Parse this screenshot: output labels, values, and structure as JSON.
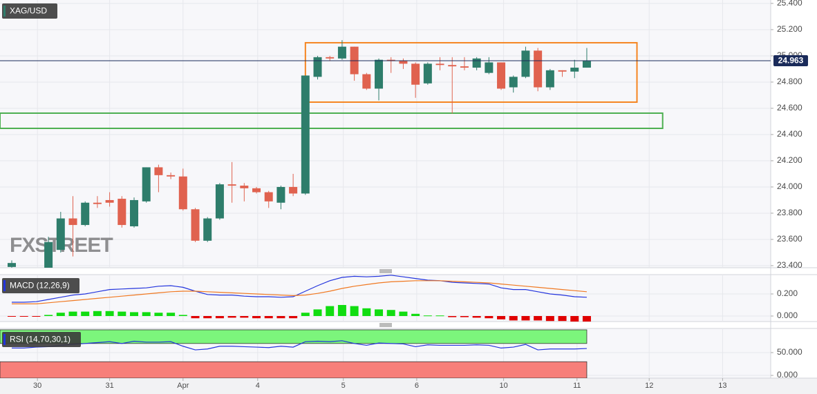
{
  "chart_data": [
    {
      "type": "candlestick",
      "title": "XAG/USD",
      "watermark": "FXSTREET",
      "x": [
        0,
        3,
        4,
        5,
        6,
        7,
        8,
        9,
        10,
        11,
        12,
        13,
        14,
        15,
        16,
        17,
        18,
        19,
        20,
        21,
        22,
        23,
        24,
        25,
        26,
        27,
        28,
        29,
        30,
        31,
        32,
        33,
        34,
        35,
        36,
        37,
        38,
        39,
        40,
        41,
        42,
        43,
        44,
        45,
        46,
        47
      ],
      "open": [
        23.39,
        23.35,
        23.52,
        23.76,
        23.71,
        23.88,
        23.9,
        23.91,
        23.7,
        23.89,
        24.15,
        24.09,
        24.08,
        23.83,
        23.59,
        23.76,
        24.02,
        24.01,
        23.99,
        23.96,
        23.88,
        24.0,
        23.95,
        24.84,
        24.99,
        24.98,
        25.07,
        24.86,
        24.75,
        24.97,
        24.96,
        24.94,
        24.79,
        24.94,
        24.93,
        24.92,
        24.91,
        24.87,
        24.95,
        24.76,
        24.84,
        25.04,
        24.76,
        24.89,
        24.88,
        24.91
      ],
      "high": [
        23.44,
        23.62,
        23.81,
        23.93,
        23.89,
        23.93,
        23.96,
        23.93,
        23.92,
        24.15,
        24.17,
        24.11,
        24.14,
        23.84,
        23.77,
        24.03,
        24.19,
        24.03,
        24.0,
        23.97,
        24.01,
        24.1,
        24.85,
        25.0,
        25.0,
        25.12,
        25.07,
        24.87,
        24.98,
        24.99,
        24.98,
        24.95,
        24.95,
        24.99,
        24.99,
        24.99,
        24.99,
        24.99,
        24.95,
        24.85,
        25.07,
        25.06,
        24.9,
        24.89,
        24.97,
        25.06
      ],
      "low": [
        23.38,
        23.3,
        23.5,
        23.47,
        23.7,
        23.84,
        23.85,
        23.69,
        23.69,
        23.88,
        23.96,
        24.06,
        23.82,
        23.58,
        23.58,
        23.75,
        23.88,
        23.89,
        23.95,
        23.84,
        23.83,
        23.93,
        23.94,
        24.82,
        24.96,
        24.97,
        24.81,
        24.74,
        24.66,
        24.87,
        24.9,
        24.68,
        24.78,
        24.89,
        24.56,
        24.89,
        24.89,
        24.86,
        24.74,
        24.72,
        24.83,
        24.73,
        24.74,
        24.84,
        24.83,
        24.91
      ],
      "close": [
        23.42,
        23.58,
        23.76,
        23.71,
        23.88,
        23.87,
        23.88,
        23.71,
        23.9,
        24.15,
        24.09,
        24.08,
        23.83,
        23.59,
        23.76,
        24.02,
        24.01,
        23.99,
        23.96,
        23.89,
        24.0,
        23.95,
        24.85,
        24.99,
        24.98,
        25.07,
        24.86,
        24.75,
        24.97,
        24.96,
        24.94,
        24.78,
        24.94,
        24.93,
        24.92,
        24.91,
        24.98,
        24.95,
        24.75,
        24.84,
        25.04,
        24.76,
        24.89,
        24.88,
        24.91,
        24.96
      ],
      "up_color": "#2e7d6b",
      "down_color": "#e0624f",
      "xlim": [
        -0.96,
        62.03
      ],
      "xticks": [
        {
          "value": 2.1,
          "label": "30"
        },
        {
          "value": 8,
          "label": "31"
        },
        {
          "value": 14,
          "label": "Apr"
        },
        {
          "value": 20.1,
          "label": "4"
        },
        {
          "value": 27.1,
          "label": "5"
        },
        {
          "value": 33.1,
          "label": "6"
        },
        {
          "value": 40.2,
          "label": "10"
        },
        {
          "value": 46.2,
          "label": "11"
        },
        {
          "value": 52.1,
          "label": "12"
        },
        {
          "value": 58.1,
          "label": "13"
        }
      ],
      "ylim": [
        23.384,
        25.426
      ],
      "yticks": [
        {
          "value": 23.4,
          "label": "23.400"
        },
        {
          "value": 23.6,
          "label": "23.600"
        },
        {
          "value": 23.8,
          "label": "23.800"
        },
        {
          "value": 24.0,
          "label": "24.000"
        },
        {
          "value": 24.2,
          "label": "24.200"
        },
        {
          "value": 24.4,
          "label": "24.400"
        },
        {
          "value": 24.6,
          "label": "24.600"
        },
        {
          "value": 24.8,
          "label": "24.800"
        },
        {
          "value": 25.0,
          "label": "25.000"
        },
        {
          "value": 25.2,
          "label": "25.200"
        },
        {
          "value": 25.4,
          "label": "25.400"
        }
      ],
      "last_price": {
        "value": 24.963,
        "label": "24.963",
        "color": "#1a2b5a"
      },
      "zones": [
        {
          "x": [
            24,
            51.1
          ],
          "y": [
            24.647,
            25.1
          ],
          "color": "#f5841f"
        },
        {
          "x": [
            -0.96,
            53.2
          ],
          "y": [
            24.447,
            24.563
          ],
          "color": "#4caf50"
        }
      ]
    },
    {
      "type": "macd",
      "title": "MACD (12,26,9)",
      "x": [
        0,
        1,
        2,
        3,
        4,
        5,
        6,
        7,
        8,
        9,
        10,
        11,
        12,
        13,
        14,
        15,
        16,
        17,
        18,
        19,
        20,
        21,
        22,
        23,
        24,
        25,
        26,
        27,
        28,
        29,
        30,
        31,
        32,
        33,
        34,
        35,
        36,
        37,
        38,
        39,
        40,
        41,
        42,
        43,
        44,
        45,
        46,
        47
      ],
      "xlim": [
        -0.96,
        62.03
      ],
      "ylim": [
        -0.05,
        0.375
      ],
      "yticks": [
        {
          "value": 0,
          "label": "0.000"
        },
        {
          "value": 0.2,
          "label": "0.200"
        }
      ],
      "series": [
        {
          "color": "#2233dd",
          "values": [
            0.125,
            0.125,
            0.13,
            0.15,
            0.17,
            0.19,
            0.2,
            0.22,
            0.24,
            0.245,
            0.25,
            0.255,
            0.27,
            0.275,
            0.26,
            0.225,
            0.195,
            0.19,
            0.19,
            0.18,
            0.175,
            0.175,
            0.17,
            0.175,
            0.225,
            0.275,
            0.32,
            0.35,
            0.36,
            0.355,
            0.36,
            0.37,
            0.355,
            0.34,
            0.325,
            0.32,
            0.305,
            0.3,
            0.295,
            0.29,
            0.255,
            0.24,
            0.24,
            0.22,
            0.2,
            0.19,
            0.175,
            0.17
          ]
        },
        {
          "color": "#f07820",
          "values": [
            0.11,
            0.11,
            0.11,
            0.12,
            0.13,
            0.14,
            0.15,
            0.16,
            0.17,
            0.18,
            0.19,
            0.2,
            0.21,
            0.22,
            0.225,
            0.225,
            0.22,
            0.215,
            0.21,
            0.205,
            0.2,
            0.195,
            0.19,
            0.185,
            0.19,
            0.205,
            0.225,
            0.25,
            0.27,
            0.285,
            0.3,
            0.31,
            0.315,
            0.32,
            0.32,
            0.32,
            0.315,
            0.31,
            0.305,
            0.3,
            0.29,
            0.28,
            0.27,
            0.26,
            0.25,
            0.24,
            0.23,
            0.22
          ]
        }
      ],
      "histogram": {
        "up_color": "#11dd11",
        "down_color": "#e00000",
        "values": [
          -0.005,
          -0.005,
          -0.005,
          0.01,
          0.03,
          0.04,
          0.04,
          0.045,
          0.045,
          0.04,
          0.035,
          0.035,
          0.03,
          0.03,
          0.01,
          -0.02,
          -0.02,
          -0.02,
          -0.015,
          -0.015,
          -0.02,
          -0.02,
          -0.02,
          -0.02,
          0.03,
          0.06,
          0.09,
          0.1,
          0.09,
          0.07,
          0.06,
          0.055,
          0.04,
          0.02,
          0.005,
          0.005,
          -0.01,
          -0.01,
          -0.015,
          -0.02,
          -0.03,
          -0.04,
          -0.04,
          -0.04,
          -0.045,
          -0.045,
          -0.05,
          -0.05
        ]
      }
    },
    {
      "type": "rsi",
      "title": "RSI (14,70,30,1)",
      "x": [
        0,
        1,
        2,
        3,
        4,
        5,
        6,
        7,
        8,
        9,
        10,
        11,
        12,
        13,
        14,
        15,
        16,
        17,
        18,
        19,
        20,
        21,
        22,
        23,
        24,
        25,
        26,
        27,
        28,
        29,
        30,
        31,
        32,
        33,
        34,
        35,
        36,
        37,
        38,
        39,
        40,
        41,
        42,
        43,
        44,
        45,
        46,
        47
      ],
      "xlim": [
        -0.96,
        62.03
      ],
      "ylim": [
        -6,
        103
      ],
      "yticks": [
        {
          "value": 0,
          "label": "0.000"
        },
        {
          "value": 50,
          "label": "50.000"
        }
      ],
      "bands": [
        {
          "x": [
            -0.96,
            47
          ],
          "range": [
            70,
            100
          ],
          "color": "#7cf57c"
        },
        {
          "x": [
            -0.96,
            47
          ],
          "range": [
            -6,
            30
          ],
          "color": "#f77f7a"
        }
      ],
      "series": [
        {
          "color": "#2233dd",
          "values": [
            60,
            60,
            62,
            63,
            66,
            68,
            70,
            72,
            74,
            70,
            75,
            73,
            73,
            74,
            64,
            56,
            58,
            64,
            64,
            63,
            62,
            61,
            64,
            62,
            74,
            75,
            74,
            76,
            70,
            66,
            71,
            70,
            69,
            63,
            67,
            66,
            66,
            66,
            67,
            66,
            60,
            62,
            68,
            56,
            58,
            58,
            58,
            59
          ]
        }
      ]
    }
  ]
}
